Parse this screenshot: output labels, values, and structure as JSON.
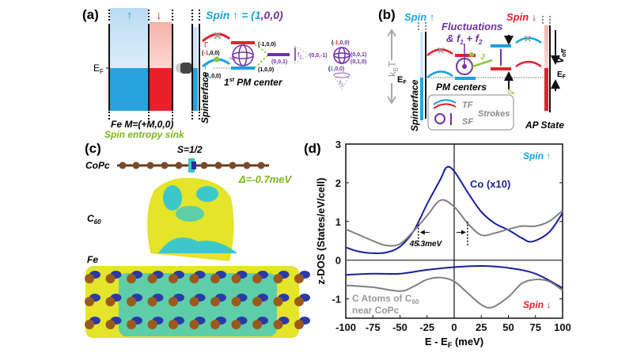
{
  "panel_a": {
    "label": "(a)",
    "spin_up_arrow": "↑",
    "spin_down_arrow": "↓",
    "spin_def_prefix": "Spin ↑ = (",
    "spin_def_1": "1",
    "spin_def_rest": ",0,0",
    "spin_def_suffix": ")",
    "ef": "E",
    "ef_sub": "F",
    "fe_label": "Fe  M=(+M,0,0)",
    "sink_label": "Spin entropy sink",
    "spinterface": "Spinterface",
    "gamma": "Γ",
    "omega": "ω",
    "omega_sub": "1",
    "state_m100_a": "(-1,0,0)",
    "state_m100_b": "(-1,0,0)",
    "state_100_a": "(1,0,0)",
    "state_100_b": "(1,0,0)",
    "state_001_a": "(0,0,1)",
    "f1": "f",
    "f1_sub": "1",
    "state_00m1": "(0,0,-1)",
    "globe2_top": "(-1,0,0)",
    "globe2_right1": "(0,0,1)",
    "globe2_right2": "(0,1,0)",
    "globe2_bottom": "(1,0,0)",
    "f2": "f",
    "f2_sub": "2",
    "pm_center": "1st PM center",
    "pm_center_1": "1",
    "pm_center_sup": "st",
    "pm_center_rest": " PM center"
  },
  "panel_b": {
    "label": "(b)",
    "spin_up": "Spin ↑",
    "spin_down": "Spin ↓",
    "fluct_1": "Fluctuations",
    "fluct_2": "& f",
    "fluct_s1": "1",
    "fluct_plus": " + f",
    "fluct_s2": "2",
    "kbt": "k",
    "kbt_sub": "B",
    "kbt_T": "T",
    "ef": "E",
    "ef_sub": "F",
    "ef_right": "E",
    "ef_right_sub": "F",
    "j": "J",
    "voff": "V",
    "voff_sub": "off",
    "pm_centers": "PM centers",
    "spinterface": "Spinterface",
    "legend_tf": "TF",
    "legend_sf": "SF",
    "legend_strokes": "Strokes",
    "ap_state": "AP State"
  },
  "panel_c": {
    "label": "(c)",
    "spin": "S=1/2",
    "copc": "CoPc",
    "c60": "C",
    "c60_sub": "60",
    "fe": "Fe",
    "delta": "Δ=-0.7meV"
  },
  "colors": {
    "spin_up": "#1ba1e2",
    "spin_down": "#e8202a",
    "purple": "#7030a0",
    "green": "#7ab51d",
    "co_curve": "#1a1f9c",
    "c_curve": "#808080",
    "iso_yellow": "#e4e42a",
    "iso_cyan": "#3cc8c8"
  },
  "chart_data": {
    "type": "line",
    "panel_label": "(d)",
    "xlabel": "E - E",
    "xlabel_sub": "F",
    "xlabel_unit": " (meV)",
    "ylabel": "z-DOS (States/eV/cell)",
    "xlim": [
      -100,
      100
    ],
    "ylim": [
      -1.5,
      3
    ],
    "xticks": [
      "-100",
      "-75",
      "-50",
      "-25",
      "0",
      "25",
      "50",
      "75",
      "100"
    ],
    "yticks": [
      "3",
      "2",
      "1",
      "0",
      "-1"
    ],
    "spin_up_label": "Spin ↑",
    "spin_down_label": "Spin ↓",
    "width_annotation": "45.3meV",
    "width_bounds": [
      -33,
      12.3
    ],
    "series": [
      {
        "name": "Co (x10)",
        "color": "#1a1f9c",
        "spin": "up",
        "x": [
          -100,
          -87.5,
          -75,
          -62.5,
          -50,
          -37.5,
          -25,
          -12.5,
          -7,
          0,
          12.5,
          25,
          37.5,
          50,
          62.5,
          72,
          87.5,
          100
        ],
        "y": [
          0.33,
          0.22,
          0.18,
          0.2,
          0.35,
          0.75,
          1.45,
          2.1,
          2.4,
          2.3,
          1.75,
          1.25,
          0.95,
          0.78,
          0.57,
          0.48,
          0.72,
          1.22
        ]
      },
      {
        "name": "C Atoms of C60 near CoPc",
        "color": "#808080",
        "spin": "up",
        "x": [
          -100,
          -87.5,
          -75,
          -62.5,
          -50,
          -37.5,
          -25,
          -12.5,
          0,
          12.5,
          25,
          37.5,
          50,
          62.5,
          75,
          87.5,
          100
        ],
        "y": [
          0.8,
          0.65,
          0.5,
          0.38,
          0.42,
          0.75,
          1.15,
          1.55,
          1.38,
          0.95,
          0.65,
          0.7,
          0.8,
          0.88,
          0.88,
          1.0,
          1.28
        ]
      },
      {
        "name": "Co (x10)",
        "color": "#1a1f9c",
        "spin": "down",
        "x": [
          -100,
          -75,
          -50,
          -25,
          0,
          25,
          50,
          75,
          100
        ],
        "y": [
          -0.38,
          -0.35,
          -0.35,
          -0.25,
          -0.18,
          -0.15,
          -0.2,
          -0.35,
          -0.72
        ]
      },
      {
        "name": "C Atoms of C60 near CoPc",
        "color": "#808080",
        "spin": "down",
        "x": [
          -100,
          -75,
          -50,
          -37.5,
          -25,
          -12.5,
          0,
          12.5,
          25,
          35,
          50,
          62.5,
          75,
          87.5,
          100
        ],
        "y": [
          -0.65,
          -0.7,
          -0.8,
          -0.68,
          -0.5,
          -0.45,
          -0.55,
          -0.85,
          -1.15,
          -1.22,
          -0.95,
          -0.6,
          -0.5,
          -0.55,
          -0.78
        ]
      }
    ],
    "legend_co": "Co (x10)",
    "legend_c_1": "C Atoms of C",
    "legend_c_sub": "60",
    "legend_c_2": "near CoPc"
  }
}
